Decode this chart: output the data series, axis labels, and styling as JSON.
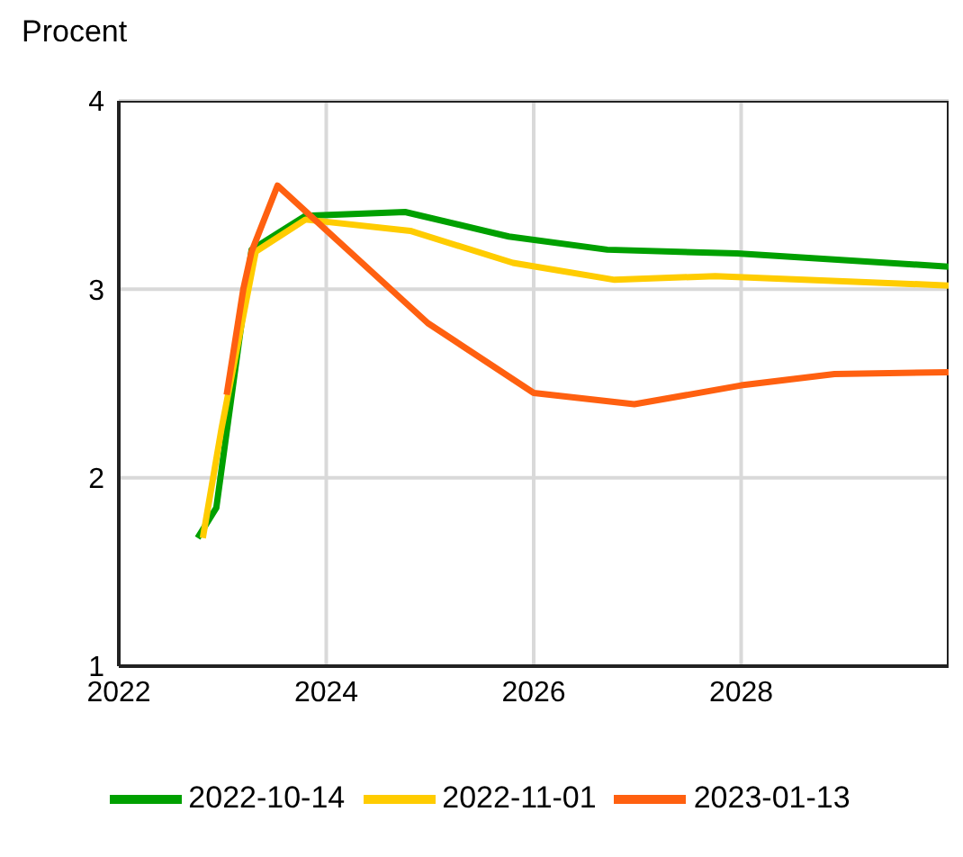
{
  "chart_data": {
    "type": "line",
    "ylabel": "Procent",
    "xlim": [
      2022,
      2030
    ],
    "xticks": [
      2022,
      2024,
      2026,
      2028
    ],
    "ylim": [
      1,
      4
    ],
    "yticks": [
      1,
      2,
      3,
      4
    ],
    "grid": true,
    "legend": "bottom",
    "marker": "none",
    "line_style": "solid",
    "series": [
      {
        "name": "2022-10-14",
        "color": "#00a000",
        "x": [
          2022.76,
          2022.94,
          2023.28,
          2023.8,
          2024.76,
          2025.76,
          2026.71,
          2027.96,
          2030
        ],
        "values": [
          1.68,
          1.84,
          3.21,
          3.39,
          3.41,
          3.28,
          3.21,
          3.19,
          3.12
        ]
      },
      {
        "name": "2022-11-01",
        "color": "#ffcc00",
        "x": [
          2022.81,
          2022.99,
          2023.32,
          2023.8,
          2024.81,
          2025.8,
          2026.78,
          2027.75,
          2030
        ],
        "values": [
          1.68,
          2.26,
          3.2,
          3.37,
          3.31,
          3.14,
          3.05,
          3.07,
          3.02
        ]
      },
      {
        "name": "2023-01-13",
        "color": "#ff6010",
        "x": [
          2023.04,
          2023.2,
          2023.28,
          2023.53,
          2024.98,
          2026.0,
          2026.97,
          2028.0,
          2028.9,
          2030
        ],
        "values": [
          2.44,
          3.0,
          3.2,
          3.55,
          2.82,
          2.45,
          2.39,
          2.49,
          2.55,
          2.56
        ]
      }
    ]
  }
}
